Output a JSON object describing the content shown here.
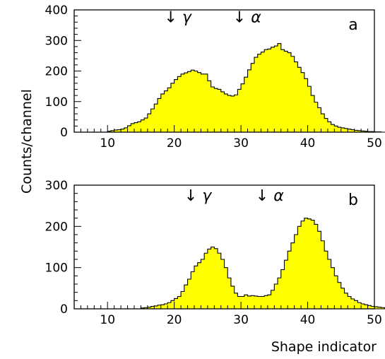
{
  "figure": {
    "ylabel": "Counts/channel",
    "xlabel": "Shape indicator",
    "fill_color": "#ffff00",
    "line_color": "#000000"
  },
  "chart_data": [
    {
      "type": "bar",
      "panel": "a",
      "xlim": [
        5,
        50
      ],
      "ylim": [
        0,
        400
      ],
      "xticks": [
        10,
        20,
        30,
        40,
        50
      ],
      "yticks": [
        0,
        100,
        200,
        300,
        400
      ],
      "bin_start": 5,
      "bin_width": 0.5,
      "values": [
        0,
        0,
        0,
        0,
        0,
        0,
        0,
        0,
        0,
        0,
        3,
        5,
        7,
        8,
        10,
        14,
        21,
        28,
        31,
        34,
        40,
        46,
        60,
        76,
        92,
        110,
        125,
        135,
        145,
        160,
        172,
        182,
        190,
        194,
        198,
        203,
        200,
        195,
        190,
        190,
        168,
        148,
        143,
        140,
        132,
        125,
        120,
        118,
        122,
        140,
        158,
        180,
        204,
        225,
        245,
        255,
        262,
        270,
        272,
        278,
        282,
        290,
        270,
        265,
        260,
        248,
        230,
        212,
        195,
        175,
        150,
        120,
        98,
        80,
        60,
        45,
        34,
        25,
        20,
        16,
        14,
        12,
        10,
        8,
        6,
        5,
        4,
        3,
        2,
        2,
        1,
        1,
        0,
        0,
        0
      ],
      "annotations": [
        {
          "text": "↓ γ",
          "x": 18.5,
          "y": 360
        },
        {
          "text": "↓ α",
          "x": 28.8,
          "y": 360
        }
      ]
    },
    {
      "type": "bar",
      "panel": "b",
      "xlim": [
        5,
        50
      ],
      "ylim": [
        0,
        300
      ],
      "xticks": [
        10,
        20,
        30,
        40,
        50
      ],
      "yticks": [
        0,
        100,
        200,
        300
      ],
      "bin_start": 5,
      "bin_width": 0.5,
      "values": [
        0,
        0,
        0,
        0,
        0,
        0,
        0,
        0,
        0,
        0,
        0,
        0,
        0,
        0,
        0,
        0,
        0,
        0,
        0,
        0,
        2,
        3,
        4,
        6,
        7,
        9,
        10,
        12,
        15,
        20,
        25,
        30,
        42,
        58,
        72,
        90,
        104,
        112,
        120,
        135,
        145,
        150,
        146,
        135,
        120,
        100,
        75,
        55,
        38,
        30,
        30,
        34,
        31,
        32,
        31,
        30,
        30,
        32,
        34,
        45,
        60,
        75,
        95,
        118,
        140,
        160,
        180,
        200,
        213,
        220,
        218,
        215,
        205,
        188,
        165,
        140,
        120,
        100,
        80,
        64,
        50,
        38,
        30,
        24,
        20,
        15,
        12,
        10,
        8,
        6,
        5,
        4,
        3,
        2,
        1,
        1
      ],
      "annotations": [
        {
          "text": "↓ γ",
          "x": 21.5,
          "y": 262
        },
        {
          "text": "↓ α",
          "x": 32.2,
          "y": 262
        }
      ]
    }
  ]
}
